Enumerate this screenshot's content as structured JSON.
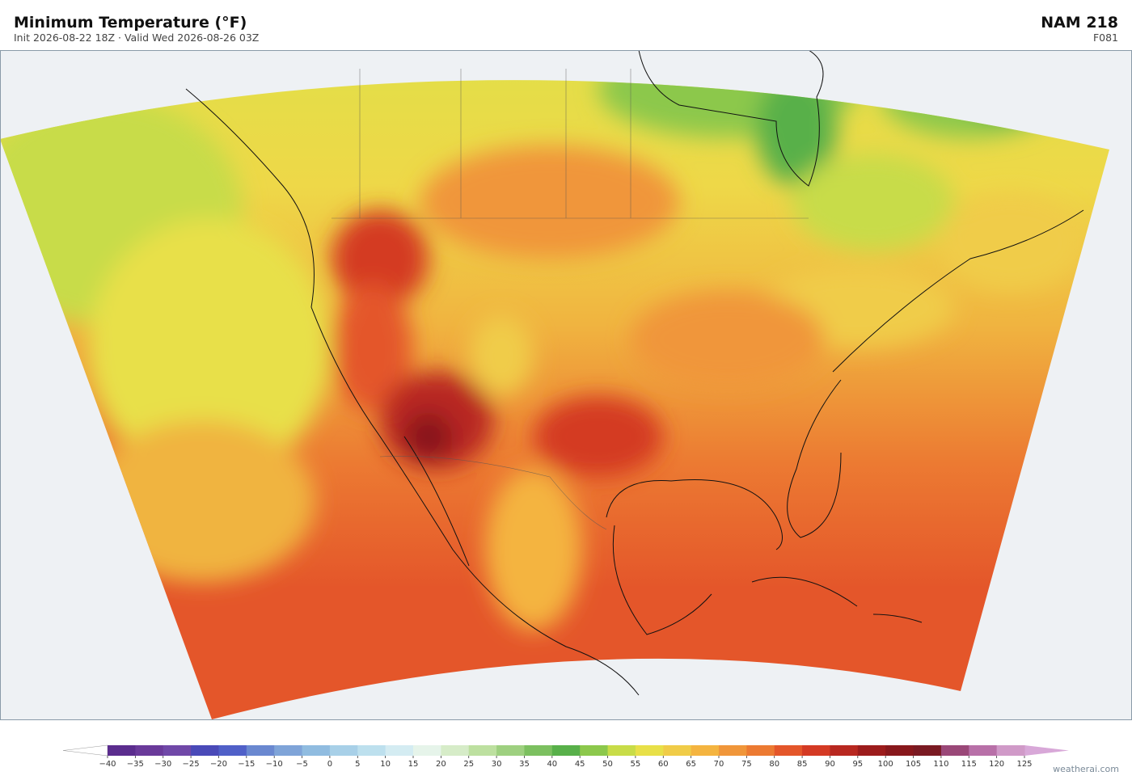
{
  "header": {
    "title": "Minimum Temperature  (°F)",
    "subtitle": "Init 2026-08-22 18Z  ·  Valid Wed 2026-08-26 03Z",
    "model": "NAM  218",
    "forecast_hour": "F081"
  },
  "colorbar": {
    "ticks": [
      {
        "value": -40,
        "label": "−40"
      },
      {
        "value": -35,
        "label": "−35"
      },
      {
        "value": -30,
        "label": "−30"
      },
      {
        "value": -25,
        "label": "−25"
      },
      {
        "value": -20,
        "label": "−20"
      },
      {
        "value": -15,
        "label": "−15"
      },
      {
        "value": -10,
        "label": "−10"
      },
      {
        "value": -5,
        "label": "−5"
      },
      0,
      5,
      10,
      15,
      20,
      25,
      30,
      35,
      40,
      45,
      50,
      55,
      60,
      65,
      70,
      75,
      80,
      85,
      90,
      95,
      100,
      105,
      110,
      115,
      120,
      125
    ],
    "colors": [
      "#5b2d8e",
      "#6a3a9a",
      "#7048a8",
      "#4a4ab8",
      "#5060c8",
      "#6a88d0",
      "#7fa4d8",
      "#90bce0",
      "#a8d0e8",
      "#bde0ee",
      "#d4ecf2",
      "#e6f4ea",
      "#d6ecc8",
      "#bde0a0",
      "#9ed080",
      "#7cc060",
      "#58b04a",
      "#8cc84c",
      "#c8dc48",
      "#e8e048",
      "#f0cc48",
      "#f4b440",
      "#f0963a",
      "#ec7a32",
      "#e4562a",
      "#d43a24",
      "#b82820",
      "#9c1c1c",
      "#88181c",
      "#7a1a22",
      "#9a4878",
      "#b870a8",
      "#d09ac8"
    ],
    "under_color": "#ffffff",
    "over_color": "#d8a8d8"
  },
  "footer": {
    "watermark": "weatherai.com"
  }
}
